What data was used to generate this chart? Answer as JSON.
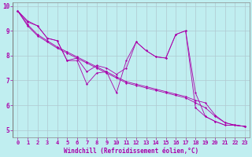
{
  "title": "",
  "xlabel": "Windchill (Refroidissement éolien,°C)",
  "ylabel": "",
  "bg_color": "#c0eef0",
  "grid_color": "#b0c8d0",
  "line_color": "#aa00aa",
  "x_values": [
    0,
    1,
    2,
    3,
    4,
    5,
    6,
    7,
    8,
    9,
    10,
    11,
    12,
    13,
    14,
    15,
    16,
    17,
    18,
    19,
    20,
    21,
    22,
    23
  ],
  "line1": [
    9.8,
    9.4,
    9.2,
    8.7,
    8.6,
    7.8,
    7.8,
    6.85,
    7.3,
    7.35,
    6.5,
    7.8,
    8.55,
    8.2,
    7.95,
    7.9,
    8.85,
    9.0,
    5.9,
    5.55,
    5.35,
    5.2,
    5.2,
    5.15
  ],
  "line2": [
    9.8,
    9.35,
    9.2,
    8.7,
    8.6,
    7.8,
    7.9,
    7.35,
    7.6,
    7.5,
    7.25,
    7.5,
    8.55,
    8.2,
    7.95,
    7.9,
    8.85,
    9.0,
    6.5,
    5.55,
    5.35,
    5.2,
    5.2,
    5.15
  ],
  "line3": [
    9.8,
    9.25,
    8.85,
    8.6,
    8.35,
    8.15,
    7.95,
    7.75,
    7.55,
    7.35,
    7.15,
    6.95,
    6.85,
    6.75,
    6.65,
    6.55,
    6.45,
    6.35,
    6.2,
    6.1,
    5.6,
    5.3,
    5.2,
    5.15
  ],
  "line4": [
    9.8,
    9.2,
    8.8,
    8.55,
    8.3,
    8.1,
    7.9,
    7.7,
    7.5,
    7.3,
    7.1,
    6.9,
    6.8,
    6.7,
    6.6,
    6.5,
    6.4,
    6.3,
    6.1,
    5.9,
    5.55,
    5.3,
    5.2,
    5.15
  ],
  "ylim": [
    4.7,
    10.15
  ],
  "xlim": [
    -0.5,
    23.5
  ],
  "yticks": [
    5,
    6,
    7,
    8,
    9,
    10
  ],
  "xticks": [
    0,
    1,
    2,
    3,
    4,
    5,
    6,
    7,
    8,
    9,
    10,
    11,
    12,
    13,
    14,
    15,
    16,
    17,
    18,
    19,
    20,
    21,
    22,
    23
  ],
  "font_color": "#aa00aa",
  "tick_font_size": 5.0,
  "xlabel_font_size": 5.5,
  "marker_size": 1.5,
  "line_width": 0.6
}
